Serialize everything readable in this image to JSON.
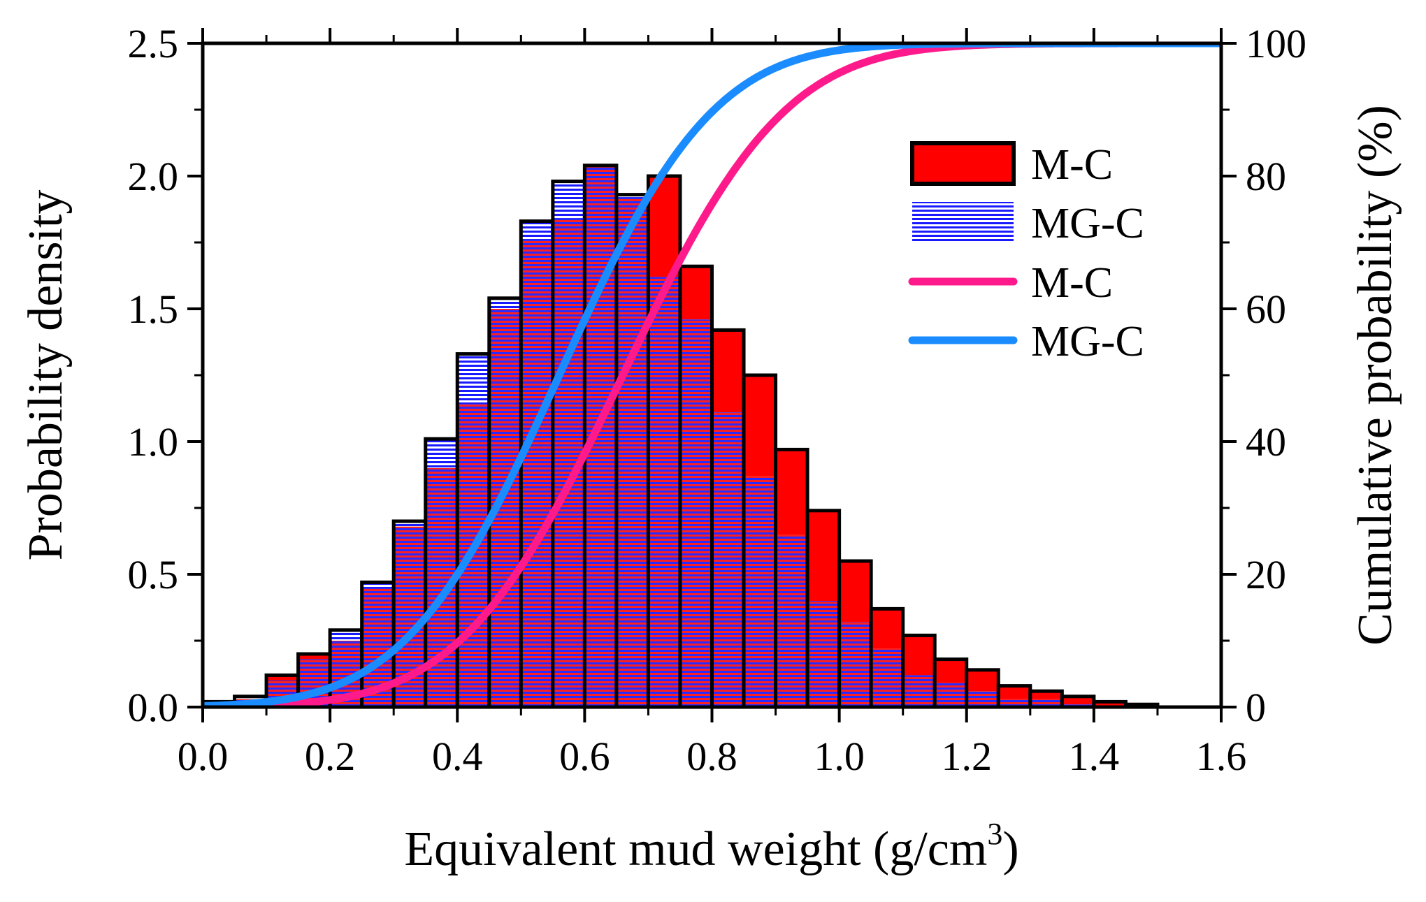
{
  "chart_data": {
    "type": "bar",
    "xlabel": "Equivalent mud weight (g/cm",
    "xlabel_sup": "3",
    "xlabel_end": ")",
    "ylabel": "Probability density",
    "y2label": "Cumulative probability (%)",
    "xlim": [
      0.0,
      1.6
    ],
    "ylim": [
      0.0,
      2.5
    ],
    "y2lim": [
      0,
      100
    ],
    "x_ticks": [
      "0.0",
      "0.2",
      "0.4",
      "0.6",
      "0.8",
      "1.0",
      "1.2",
      "1.4",
      "1.6"
    ],
    "y_ticks": [
      "0.0",
      "0.5",
      "1.0",
      "1.5",
      "2.0",
      "2.5"
    ],
    "y2_ticks": [
      "0",
      "20",
      "40",
      "60",
      "80",
      "100"
    ],
    "bin_width": 0.05,
    "bin_starts": [
      0.0,
      0.05,
      0.1,
      0.15,
      0.2,
      0.25,
      0.3,
      0.35,
      0.4,
      0.45,
      0.5,
      0.55,
      0.6,
      0.65,
      0.7,
      0.75,
      0.8,
      0.85,
      0.9,
      0.95,
      1.0,
      1.05,
      1.1,
      1.15,
      1.2,
      1.25,
      1.3,
      1.35,
      1.4,
      1.45
    ],
    "histograms": [
      {
        "name": "M-C",
        "color": "#ff0000",
        "values": [
          0.01,
          0.03,
          0.12,
          0.2,
          0.25,
          0.45,
          0.68,
          0.9,
          1.14,
          1.5,
          1.76,
          1.84,
          2.04,
          1.92,
          2.0,
          1.66,
          1.42,
          1.25,
          0.97,
          0.74,
          0.55,
          0.37,
          0.27,
          0.18,
          0.14,
          0.08,
          0.06,
          0.04,
          0.02,
          0.01
        ]
      },
      {
        "name": "MG-C",
        "color": "#1a1aff",
        "values": [
          0.02,
          0.04,
          0.1,
          0.18,
          0.29,
          0.47,
          0.7,
          1.01,
          1.33,
          1.54,
          1.83,
          1.98,
          2.04,
          1.93,
          1.62,
          1.46,
          1.11,
          0.87,
          0.65,
          0.4,
          0.32,
          0.22,
          0.12,
          0.09,
          0.06,
          0.03,
          0.03,
          0.01,
          0.0,
          0.0
        ]
      }
    ],
    "cdf_series": [
      {
        "name": "M-C",
        "color": "#ff1a8c",
        "mean": 0.66,
        "sd": 0.2,
        "x_start": 0.0,
        "x_end": 1.6
      },
      {
        "name": "MG-C",
        "color": "#1a8cff",
        "mean": 0.56,
        "sd": 0.19,
        "x_start": 0.0,
        "x_end": 1.6
      }
    ],
    "legend": {
      "position": "top-right",
      "entries": [
        {
          "label": "M-C",
          "kind": "histogram",
          "color": "#ff0000"
        },
        {
          "label": "MG-C",
          "kind": "histogram",
          "color": "#1a1aff"
        },
        {
          "label": "M-C",
          "kind": "line",
          "color": "#ff1a8c"
        },
        {
          "label": "MG-C",
          "kind": "line",
          "color": "#1a8cff"
        }
      ]
    }
  }
}
